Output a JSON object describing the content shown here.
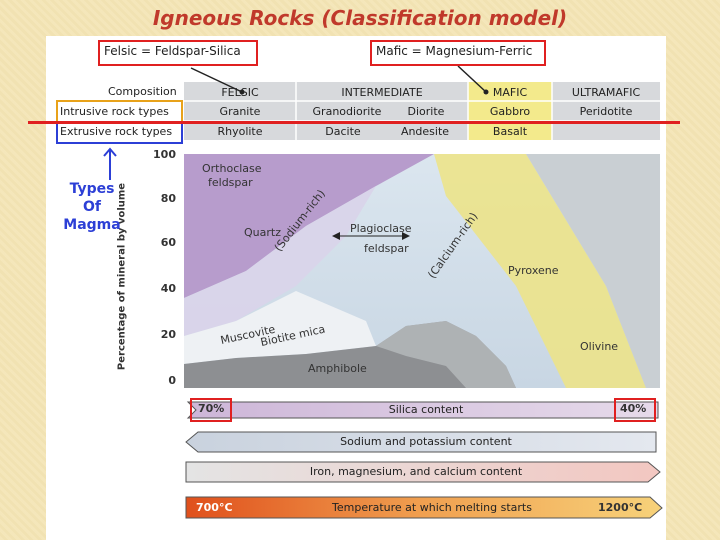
{
  "title": "Igneous Rocks (Classification model)",
  "callouts": {
    "felsic": "Felsic = Feldspar-Silica",
    "mafic": "Mafic = Magnesium-Ferric"
  },
  "table": {
    "row_headers": [
      "Composition",
      "Intrusive rock types",
      "Extrusive rock types"
    ],
    "columns": [
      {
        "name": "FELSIC",
        "intrusive": [
          "Granite"
        ],
        "extrusive": [
          "Rhyolite"
        ]
      },
      {
        "name": "INTERMEDIATE",
        "intrusive": [
          "Granodiorite",
          "Diorite"
        ],
        "extrusive": [
          "Dacite",
          "Andesite"
        ]
      },
      {
        "name": "MAFIC",
        "intrusive": [
          "Gabbro"
        ],
        "extrusive": [
          "Basalt"
        ]
      },
      {
        "name": "ULTRAMAFIC",
        "intrusive": [
          "Peridotite"
        ],
        "extrusive": [
          ""
        ]
      }
    ]
  },
  "side_label": {
    "line1": "Types",
    "line2": "Of",
    "line3": "Magma"
  },
  "axis": {
    "ylabel": "Percentage of mineral by volume",
    "ticks": [
      "100",
      "80",
      "60",
      "40",
      "20",
      "0"
    ]
  },
  "minerals": {
    "orthoclase_1": "Orthoclase",
    "orthoclase_2": "feldspar",
    "quartz": "Quartz",
    "sodium": "(Sodium-rich)",
    "plagioclase_1": "Plagioclase",
    "plagioclase_2": "feldspar",
    "calcium": "(Calcium-rich)",
    "pyroxene": "Pyroxene",
    "muscovite": "Muscovite",
    "biotite": "Biotite mica",
    "amphibole": "Amphibole",
    "olivine": "Olivine"
  },
  "arrows": {
    "silica": {
      "label": "Silica content",
      "left": "70%",
      "right": "40%"
    },
    "sodium_potassium": {
      "label": "Sodium and potassium content"
    },
    "iron": {
      "label": "Iron, magnesium, and calcium content"
    },
    "temperature": {
      "label": "Temperature at which melting starts",
      "left": "700°C",
      "right": "1200°C"
    }
  },
  "colors": {
    "title": "#c0392b",
    "highlight": "#e02020",
    "intrusive_box": "#e8a21a",
    "extrusive_box": "#2c3fd6",
    "mafic_column": "#f3ea8c"
  }
}
